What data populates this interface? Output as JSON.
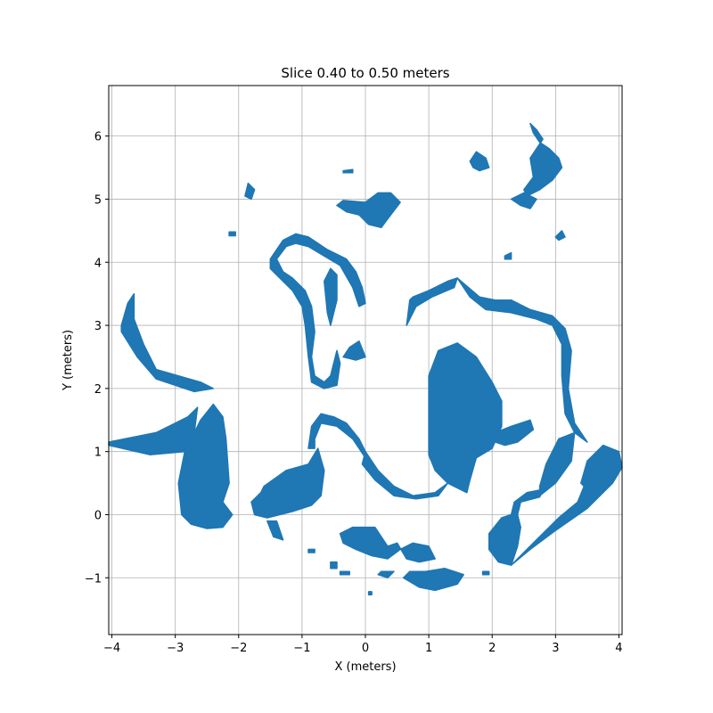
{
  "chart_data": {
    "type": "scatter",
    "title": "Slice 0.40 to 0.50 meters",
    "xlabel": "X (meters)",
    "ylabel": "Y (meters)",
    "xlim": [
      -4.05,
      4.05
    ],
    "ylim": [
      -1.9,
      6.8
    ],
    "xticks": [
      -4,
      -3,
      -2,
      -1,
      0,
      1,
      2,
      3,
      4
    ],
    "xtick_labels": [
      "−4",
      "−3",
      "−2",
      "−1",
      "0",
      "1",
      "2",
      "3",
      "4"
    ],
    "yticks": [
      -1,
      0,
      1,
      2,
      3,
      4,
      5,
      6
    ],
    "ytick_labels": [
      "−1",
      "0",
      "1",
      "2",
      "3",
      "4",
      "5",
      "6"
    ],
    "grid": true,
    "color": "#1f77b4",
    "regions": [
      [
        [
          -4.05,
          1.15
        ],
        [
          -3.3,
          1.3
        ],
        [
          -2.8,
          1.55
        ],
        [
          -2.65,
          1.7
        ],
        [
          -2.7,
          1.3
        ],
        [
          -2.85,
          1.0
        ],
        [
          -3.4,
          0.95
        ],
        [
          -4.05,
          1.1
        ]
      ],
      [
        [
          -2.85,
          1.0
        ],
        [
          -2.6,
          1.5
        ],
        [
          -2.4,
          1.75
        ],
        [
          -2.25,
          1.55
        ],
        [
          -2.2,
          1.2
        ],
        [
          -2.15,
          0.5
        ],
        [
          -2.25,
          0.2
        ],
        [
          -2.1,
          0.0
        ],
        [
          -2.25,
          -0.2
        ],
        [
          -2.5,
          -0.22
        ],
        [
          -2.75,
          -0.15
        ],
        [
          -2.9,
          0.0
        ],
        [
          -2.95,
          0.5
        ]
      ],
      [
        [
          -3.85,
          3.0
        ],
        [
          -3.75,
          3.35
        ],
        [
          -3.65,
          3.5
        ],
        [
          -3.65,
          3.1
        ],
        [
          -3.5,
          2.7
        ],
        [
          -3.3,
          2.3
        ],
        [
          -2.6,
          2.1
        ],
        [
          -2.4,
          2.0
        ],
        [
          -2.7,
          1.95
        ],
        [
          -3.3,
          2.15
        ],
        [
          -3.6,
          2.5
        ],
        [
          -3.85,
          2.9
        ]
      ],
      [
        [
          -1.6,
          0.45
        ],
        [
          -1.25,
          0.7
        ],
        [
          -0.9,
          0.8
        ],
        [
          -0.75,
          1.05
        ],
        [
          -0.65,
          0.7
        ],
        [
          -0.7,
          0.3
        ],
        [
          -0.85,
          0.15
        ],
        [
          -1.15,
          0.05
        ],
        [
          -1.55,
          -0.05
        ],
        [
          -1.75,
          0.0
        ],
        [
          -1.8,
          0.2
        ],
        [
          -1.65,
          0.35
        ]
      ],
      [
        [
          -1.55,
          -0.1
        ],
        [
          -1.45,
          -0.35
        ],
        [
          -1.3,
          -0.4
        ],
        [
          -1.4,
          -0.1
        ]
      ],
      [
        [
          -0.9,
          1.05
        ],
        [
          -0.85,
          1.4
        ],
        [
          -0.7,
          1.6
        ],
        [
          -0.5,
          1.55
        ],
        [
          -0.3,
          1.45
        ],
        [
          -0.1,
          1.2
        ],
        [
          0.0,
          1.0
        ],
        [
          0.0,
          0.9
        ],
        [
          -0.2,
          1.2
        ],
        [
          -0.45,
          1.4
        ],
        [
          -0.7,
          1.45
        ],
        [
          -0.8,
          1.2
        ],
        [
          -0.8,
          1.05
        ]
      ],
      [
        [
          0.0,
          1.0
        ],
        [
          0.2,
          0.7
        ],
        [
          0.45,
          0.45
        ],
        [
          0.75,
          0.3
        ],
        [
          1.1,
          0.35
        ],
        [
          1.3,
          0.5
        ],
        [
          1.15,
          0.3
        ],
        [
          0.8,
          0.25
        ],
        [
          0.45,
          0.3
        ],
        [
          0.15,
          0.55
        ],
        [
          -0.05,
          0.8
        ]
      ],
      [
        [
          1.0,
          1.1
        ],
        [
          1.0,
          2.2
        ],
        [
          1.15,
          2.6
        ],
        [
          1.45,
          2.72
        ],
        [
          1.75,
          2.5
        ],
        [
          2.0,
          2.1
        ],
        [
          2.15,
          1.8
        ],
        [
          2.15,
          1.4
        ],
        [
          2.0,
          1.05
        ],
        [
          1.75,
          0.9
        ],
        [
          1.65,
          0.55
        ],
        [
          1.6,
          0.35
        ],
        [
          1.3,
          0.5
        ],
        [
          1.1,
          0.7
        ],
        [
          1.0,
          0.95
        ]
      ],
      [
        [
          2.05,
          1.3
        ],
        [
          2.3,
          1.4
        ],
        [
          2.6,
          1.5
        ],
        [
          2.65,
          1.35
        ],
        [
          2.4,
          1.15
        ],
        [
          2.2,
          1.1
        ],
        [
          2.05,
          1.15
        ]
      ],
      [
        [
          0.75,
          3.45
        ],
        [
          1.0,
          3.55
        ],
        [
          1.3,
          3.7
        ],
        [
          1.45,
          3.75
        ],
        [
          1.4,
          3.6
        ],
        [
          1.05,
          3.45
        ],
        [
          0.8,
          3.3
        ],
        [
          0.65,
          3.0
        ],
        [
          0.7,
          3.4
        ]
      ],
      [
        [
          1.45,
          3.75
        ],
        [
          1.8,
          3.45
        ],
        [
          2.05,
          3.4
        ],
        [
          2.3,
          3.4
        ],
        [
          2.6,
          3.25
        ],
        [
          2.95,
          3.15
        ],
        [
          3.15,
          2.95
        ],
        [
          3.25,
          2.6
        ],
        [
          3.2,
          2.0
        ],
        [
          3.3,
          1.45
        ],
        [
          3.5,
          1.15
        ],
        [
          3.3,
          1.3
        ],
        [
          3.15,
          1.6
        ],
        [
          3.1,
          2.2
        ],
        [
          3.1,
          2.7
        ],
        [
          2.95,
          3.0
        ],
        [
          2.7,
          3.1
        ],
        [
          2.3,
          3.2
        ],
        [
          1.9,
          3.25
        ],
        [
          1.65,
          3.45
        ]
      ],
      [
        [
          2.75,
          0.3
        ],
        [
          3.0,
          0.5
        ],
        [
          3.25,
          0.85
        ],
        [
          3.3,
          1.3
        ],
        [
          3.05,
          1.2
        ],
        [
          2.85,
          0.8
        ],
        [
          2.75,
          0.45
        ]
      ],
      [
        [
          3.4,
          0.5
        ],
        [
          3.5,
          0.85
        ],
        [
          3.75,
          1.1
        ],
        [
          4.0,
          1.0
        ],
        [
          4.05,
          0.75
        ],
        [
          3.9,
          0.5
        ],
        [
          3.5,
          0.1
        ],
        [
          3.0,
          -0.25
        ],
        [
          2.6,
          -0.55
        ],
        [
          2.3,
          -0.8
        ],
        [
          2.65,
          -0.45
        ],
        [
          3.05,
          -0.05
        ],
        [
          3.35,
          0.2
        ],
        [
          3.45,
          0.45
        ]
      ],
      [
        [
          1.95,
          -0.3
        ],
        [
          2.15,
          -0.05
        ],
        [
          2.3,
          0.0
        ],
        [
          2.35,
          0.2
        ],
        [
          2.55,
          0.35
        ],
        [
          2.8,
          0.4
        ],
        [
          2.75,
          0.28
        ],
        [
          2.45,
          0.2
        ],
        [
          2.4,
          0.0
        ],
        [
          2.45,
          -0.2
        ],
        [
          2.4,
          -0.5
        ],
        [
          2.3,
          -0.8
        ],
        [
          2.1,
          -0.75
        ],
        [
          1.95,
          -0.55
        ]
      ],
      [
        [
          -0.4,
          -0.3
        ],
        [
          -0.2,
          -0.2
        ],
        [
          0.15,
          -0.2
        ],
        [
          0.35,
          -0.5
        ],
        [
          0.5,
          -0.45
        ],
        [
          0.65,
          -0.7
        ],
        [
          0.85,
          -0.75
        ],
        [
          1.1,
          -0.7
        ],
        [
          1.0,
          -0.5
        ],
        [
          0.75,
          -0.45
        ],
        [
          0.55,
          -0.55
        ],
        [
          0.35,
          -0.7
        ],
        [
          0.1,
          -0.65
        ],
        [
          -0.15,
          -0.55
        ],
        [
          -0.35,
          -0.45
        ]
      ],
      [
        [
          0.6,
          -1.0
        ],
        [
          0.85,
          -1.15
        ],
        [
          1.1,
          -1.2
        ],
        [
          1.45,
          -1.1
        ],
        [
          1.55,
          -0.95
        ],
        [
          1.25,
          -0.85
        ],
        [
          0.95,
          -0.9
        ],
        [
          0.7,
          -0.9
        ]
      ],
      [
        [
          0.2,
          -0.95
        ],
        [
          0.35,
          -1.0
        ],
        [
          0.45,
          -0.9
        ],
        [
          0.25,
          -0.9
        ]
      ],
      [
        [
          -1.5,
          4.05
        ],
        [
          -1.3,
          4.35
        ],
        [
          -1.1,
          4.45
        ],
        [
          -0.9,
          4.4
        ],
        [
          -0.6,
          4.2
        ],
        [
          -0.3,
          4.05
        ],
        [
          -0.15,
          3.85
        ],
        [
          -0.05,
          3.6
        ],
        [
          0.0,
          3.35
        ],
        [
          -0.1,
          3.3
        ],
        [
          -0.2,
          3.6
        ],
        [
          -0.4,
          3.95
        ],
        [
          -0.65,
          4.1
        ],
        [
          -0.9,
          4.25
        ],
        [
          -1.1,
          4.3
        ],
        [
          -1.25,
          4.25
        ],
        [
          -1.4,
          4.05
        ],
        [
          -1.3,
          3.85
        ],
        [
          -1.15,
          3.75
        ],
        [
          -0.95,
          3.55
        ],
        [
          -0.85,
          3.3
        ],
        [
          -0.8,
          2.9
        ],
        [
          -0.85,
          2.5
        ],
        [
          -0.8,
          2.2
        ],
        [
          -0.65,
          2.1
        ],
        [
          -0.55,
          2.2
        ],
        [
          -0.45,
          2.6
        ],
        [
          -0.4,
          2.4
        ],
        [
          -0.45,
          2.05
        ],
        [
          -0.65,
          2.0
        ],
        [
          -0.85,
          2.1
        ],
        [
          -0.9,
          2.5
        ],
        [
          -0.95,
          3.0
        ],
        [
          -1.0,
          3.3
        ],
        [
          -1.15,
          3.55
        ],
        [
          -1.35,
          3.75
        ],
        [
          -1.5,
          3.9
        ]
      ],
      [
        [
          -0.65,
          3.7
        ],
        [
          -0.55,
          3.9
        ],
        [
          -0.45,
          3.8
        ],
        [
          -0.45,
          3.4
        ],
        [
          -0.55,
          3.0
        ],
        [
          -0.6,
          3.2
        ]
      ],
      [
        [
          -0.35,
          2.5
        ],
        [
          -0.25,
          2.65
        ],
        [
          -0.1,
          2.75
        ],
        [
          0.0,
          2.5
        ],
        [
          -0.15,
          2.45
        ]
      ],
      [
        [
          -0.45,
          4.9
        ],
        [
          -0.3,
          4.8
        ],
        [
          -0.1,
          4.75
        ],
        [
          0.05,
          4.6
        ],
        [
          0.25,
          4.55
        ],
        [
          0.4,
          4.75
        ],
        [
          0.55,
          4.95
        ],
        [
          0.4,
          5.1
        ],
        [
          0.2,
          5.1
        ],
        [
          0.0,
          4.95
        ],
        [
          -0.35,
          4.98
        ]
      ],
      [
        [
          2.55,
          5.05
        ],
        [
          2.75,
          5.15
        ],
        [
          2.95,
          5.3
        ],
        [
          3.1,
          5.5
        ],
        [
          3.05,
          5.65
        ],
        [
          2.9,
          5.8
        ],
        [
          2.75,
          5.9
        ],
        [
          2.65,
          6.05
        ],
        [
          2.6,
          6.2
        ],
        [
          2.7,
          6.1
        ],
        [
          2.8,
          5.95
        ],
        [
          2.6,
          5.65
        ],
        [
          2.65,
          5.35
        ],
        [
          2.5,
          5.15
        ]
      ],
      [
        [
          2.3,
          5.0
        ],
        [
          2.5,
          5.1
        ],
        [
          2.7,
          5.0
        ],
        [
          2.6,
          4.85
        ],
        [
          2.45,
          4.9
        ]
      ],
      [
        [
          1.65,
          5.6
        ],
        [
          1.75,
          5.75
        ],
        [
          1.9,
          5.65
        ],
        [
          1.95,
          5.5
        ],
        [
          1.8,
          5.45
        ],
        [
          1.7,
          5.5
        ]
      ],
      [
        [
          -1.9,
          5.05
        ],
        [
          -1.85,
          5.25
        ],
        [
          -1.75,
          5.15
        ],
        [
          -1.8,
          5.0
        ]
      ],
      [
        [
          -0.35,
          5.45
        ],
        [
          -0.2,
          5.47
        ],
        [
          -0.2,
          5.42
        ],
        [
          -0.35,
          5.42
        ]
      ],
      [
        [
          -2.15,
          4.48
        ],
        [
          -2.05,
          4.48
        ],
        [
          -2.05,
          4.42
        ],
        [
          -2.15,
          4.42
        ]
      ],
      [
        [
          3.0,
          4.4
        ],
        [
          3.1,
          4.5
        ],
        [
          3.15,
          4.4
        ],
        [
          3.05,
          4.35
        ]
      ],
      [
        [
          2.2,
          4.1
        ],
        [
          2.3,
          4.15
        ],
        [
          2.3,
          4.05
        ],
        [
          2.2,
          4.05
        ]
      ],
      [
        [
          -0.9,
          -0.55
        ],
        [
          -0.8,
          -0.55
        ],
        [
          -0.8,
          -0.6
        ],
        [
          -0.9,
          -0.6
        ]
      ],
      [
        [
          -0.55,
          -0.75
        ],
        [
          -0.45,
          -0.75
        ],
        [
          -0.45,
          -0.85
        ],
        [
          -0.55,
          -0.85
        ]
      ],
      [
        [
          -0.4,
          -0.9
        ],
        [
          -0.25,
          -0.9
        ],
        [
          -0.25,
          -0.95
        ],
        [
          -0.4,
          -0.95
        ]
      ],
      [
        [
          1.85,
          -0.9
        ],
        [
          1.95,
          -0.9
        ],
        [
          1.95,
          -0.95
        ],
        [
          1.85,
          -0.95
        ]
      ],
      [
        [
          0.05,
          -1.22
        ],
        [
          0.1,
          -1.22
        ],
        [
          0.1,
          -1.27
        ],
        [
          0.05,
          -1.27
        ]
      ]
    ]
  }
}
